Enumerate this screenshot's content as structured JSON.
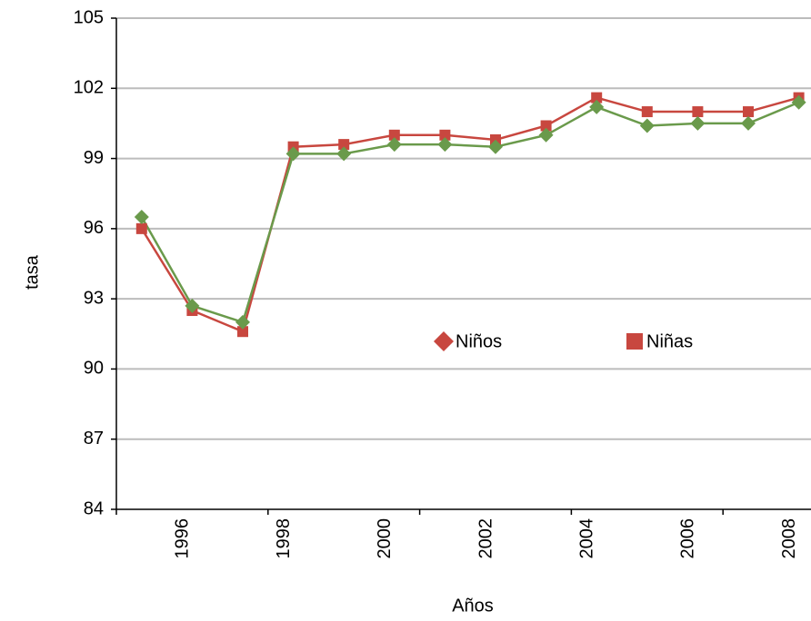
{
  "chart_data": {
    "type": "line",
    "x_label": "Años",
    "y_label": "tasa",
    "categories": [
      null,
      "1996",
      null,
      "1998",
      null,
      "2000",
      null,
      "2002",
      null,
      "2004",
      null,
      "2006",
      null,
      "2008"
    ],
    "series": [
      {
        "name": "Niños",
        "color": "#c8473f",
        "marker": "square",
        "values": [
          96.0,
          92.5,
          91.6,
          99.5,
          99.6,
          100.0,
          100.0,
          99.8,
          100.4,
          101.6,
          101.0,
          101.0,
          101.0,
          101.6
        ]
      },
      {
        "name": "Niñas",
        "color": "#6a9a4b",
        "marker": "diamond",
        "values": [
          96.5,
          92.7,
          92.0,
          99.2,
          99.2,
          99.6,
          99.6,
          99.5,
          100.0,
          101.2,
          100.4,
          100.5,
          100.5,
          101.4
        ]
      }
    ],
    "ylim": [
      84,
      105
    ],
    "yticks": [
      84,
      87,
      90,
      93,
      96,
      99,
      102,
      105
    ],
    "grid": true
  }
}
